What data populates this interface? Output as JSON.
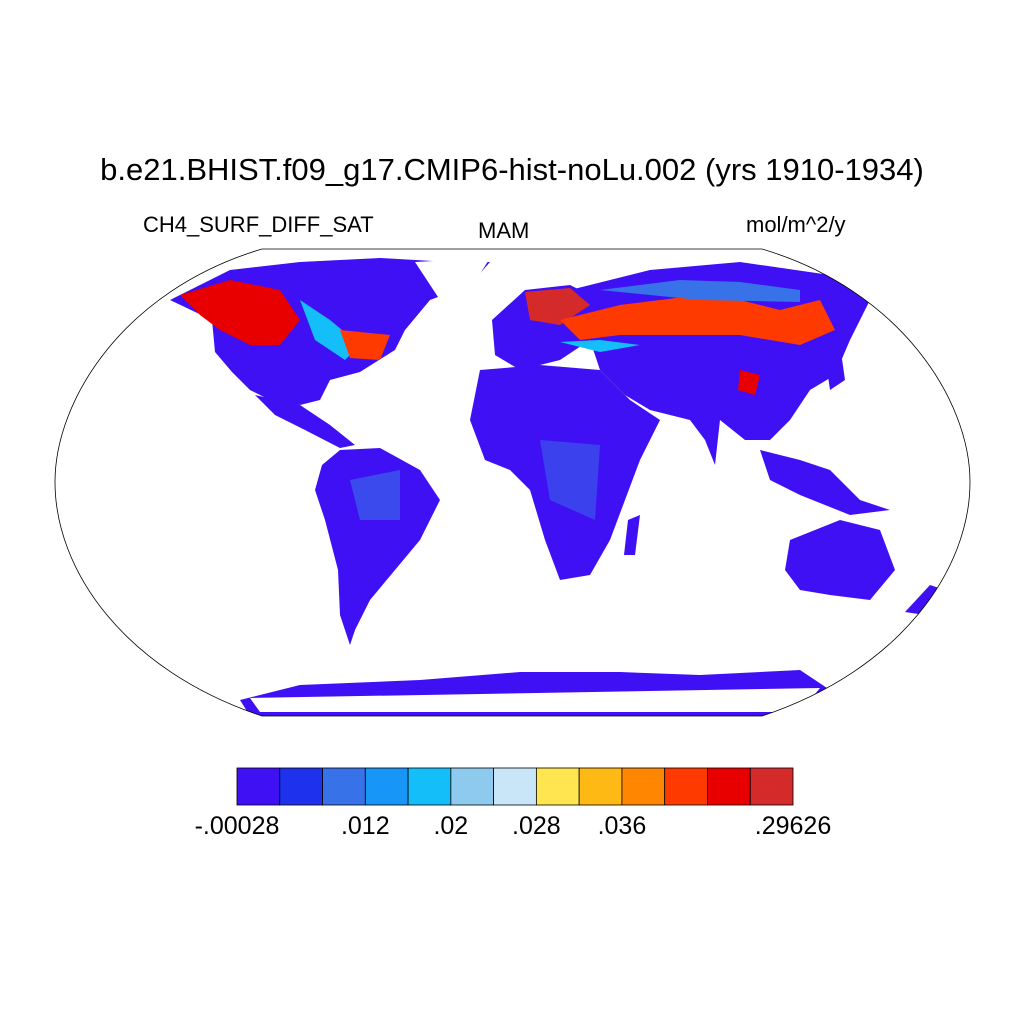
{
  "title": "b.e21.BHIST.f09_g17.CMIP6-hist-noLu.002 (yrs 1910-1934)",
  "left_string": "CH4_SURF_DIFF_SAT",
  "center_string": "MAM",
  "right_string": "mol/m^2/y",
  "colorbar": {
    "colors": [
      "#4010f5",
      "#1e32ee",
      "#3872e8",
      "#1896f8",
      "#14bef8",
      "#8ecaee",
      "#c8e6f8",
      "#ffe650",
      "#ffb914",
      "#ff8600",
      "#ff3a00",
      "#e80000",
      "#d42a2a"
    ],
    "labels": [
      {
        "text": "-.00028",
        "box_edge": 0
      },
      {
        "text": ".012",
        "box_edge": 3
      },
      {
        "text": ".02",
        "box_edge": 5
      },
      {
        "text": ".028",
        "box_edge": 7
      },
      {
        "text": ".036",
        "box_edge": 9
      },
      {
        "text": ".29626",
        "box_edge": 13
      }
    ]
  }
}
